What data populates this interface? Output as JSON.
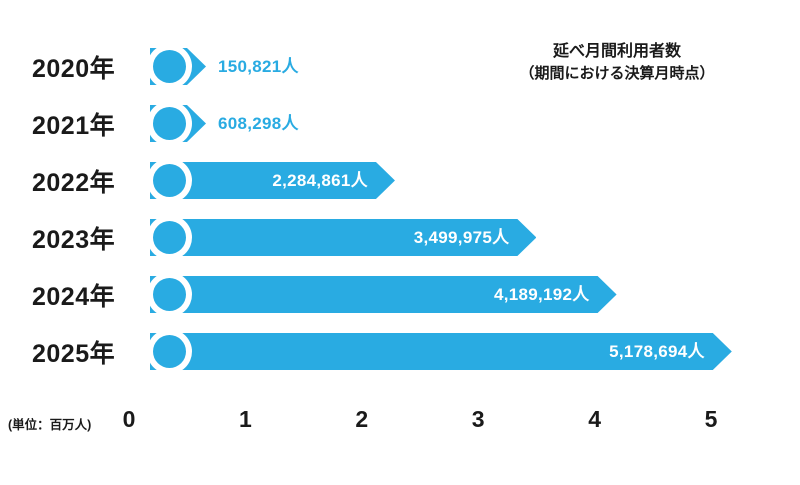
{
  "chart_data": {
    "type": "bar",
    "orientation": "horizontal",
    "title": "延べ月間利用者数",
    "subtitle": "（期間における決算月時点）",
    "unit_label": "(単位：百万人)",
    "categories": [
      "2020年",
      "2021年",
      "2022年",
      "2023年",
      "2024年",
      "2025年"
    ],
    "values": [
      150821,
      608298,
      2284861,
      3499975,
      4189192,
      5178694
    ],
    "value_labels": [
      "150,821人",
      "608,298人",
      "2,284,861人",
      "3,499,975人",
      "4,189,192人",
      "5,178,694人"
    ],
    "x_ticks": [
      "0",
      "1",
      "2",
      "3",
      "4",
      "5"
    ],
    "xlim": [
      0,
      5500000
    ],
    "grid": false,
    "legend": "none",
    "colors": {
      "bar": "#29abe2",
      "label_inside": "#ffffff",
      "label_outside": "#29abe2",
      "text": "#1a1a1a",
      "background": "#ffffff"
    }
  }
}
